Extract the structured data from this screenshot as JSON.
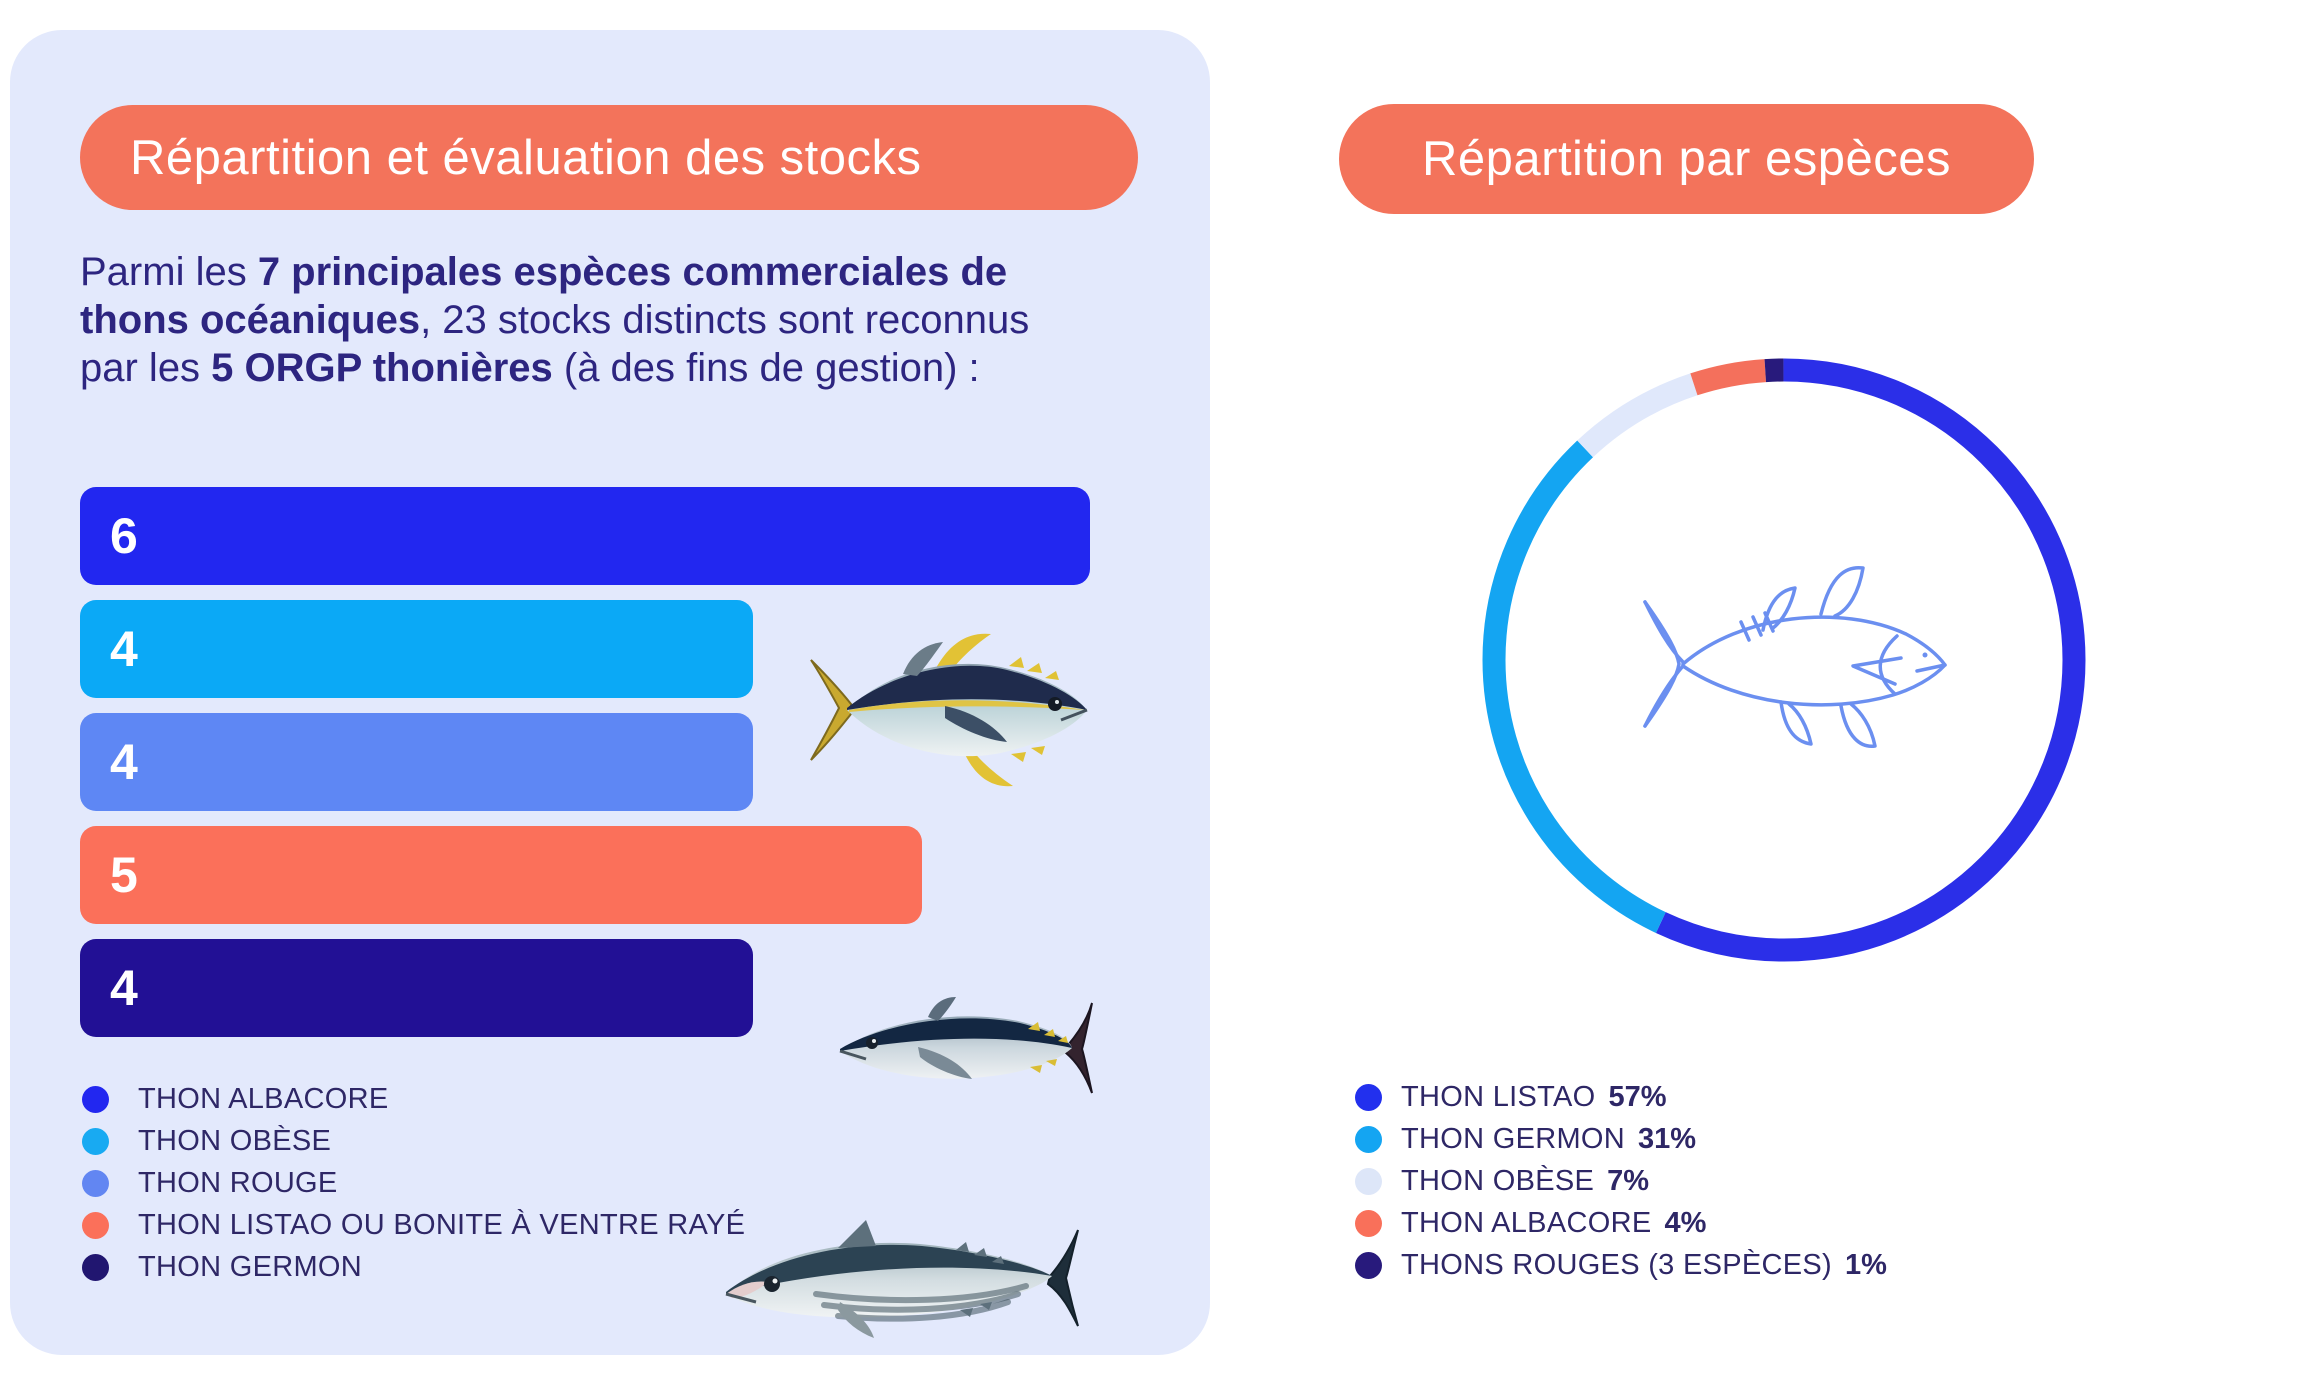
{
  "left_panel": {
    "title": "Répartition et évaluation des stocks",
    "intro": {
      "t1": "Parmi les ",
      "b1": "7 principales espèces commerciales de thons océaniques",
      "t2": ", 23 stocks distincts sont reconnus par les ",
      "b2": "5 ORGP thonières",
      "t3": " (à des fins de gestion) :"
    },
    "legend": [
      {
        "label": "THON ALBACORE",
        "color": "#2227f0"
      },
      {
        "label": "THON OBÈSE",
        "color": "#18aaf2"
      },
      {
        "label": "THON ROUGE",
        "color": "#6286f2"
      },
      {
        "label": "THON LISTAO OU BONITE À VENTRE RAYÉ",
        "color": "#fb705a"
      },
      {
        "label": "THON GERMON",
        "color": "#211670"
      }
    ]
  },
  "right_panel": {
    "title": "Répartition par espèces",
    "legend": [
      {
        "label": "THON LISTAO",
        "pct": "57%",
        "color": "#2230ee"
      },
      {
        "label": "THON GERMON",
        "pct": "31%",
        "color": "#14a5f2"
      },
      {
        "label": "THON OBÈSE",
        "pct": "7%",
        "color": "#dde6f8"
      },
      {
        "label": "THON ALBACORE",
        "pct": "4%",
        "color": "#f9705a"
      },
      {
        "label": "THONS ROUGES (3 ESPÈCES)",
        "pct": "1%",
        "color": "#281a7c"
      }
    ]
  },
  "chart_data": [
    {
      "type": "bar",
      "orientation": "horizontal",
      "title": "Répartition et évaluation des stocks",
      "categories": [
        "THON ALBACORE",
        "THON OBÈSE",
        "THON ROUGE",
        "THON LISTAO OU BONITE À VENTRE RAYÉ",
        "THON GERMON"
      ],
      "values": [
        6,
        4,
        4,
        5,
        4
      ],
      "value_labels": [
        "6",
        "4",
        "4",
        "5",
        "4"
      ],
      "colors": [
        "#2227f0",
        "#0ba9f6",
        "#5e87f4",
        "#fb705a",
        "#221095"
      ],
      "xlim": [
        0,
        6
      ],
      "grid": false,
      "value_label_position": "inside-left",
      "legend_position": "bottom-left"
    },
    {
      "type": "pie",
      "subtype": "donut",
      "title": "Répartition par espèces",
      "labels": [
        "THON LISTAO",
        "THON GERMON",
        "THON OBÈSE",
        "THON ALBACORE",
        "THONS ROUGES (3 ESPÈCES)"
      ],
      "values": [
        57,
        31,
        7,
        4,
        1
      ],
      "unit": "%",
      "colors": [
        "#2b2fe8",
        "#14a5f2",
        "#e0e8fb",
        "#f4705c",
        "#281a7c"
      ],
      "start_angle_deg": 0,
      "direction": "clockwise",
      "center_icon": "tuna-outline",
      "legend_position": "bottom-left"
    }
  ],
  "icons": {
    "center_fish": "tuna-outline-icon",
    "photos": [
      "yellowfin-tuna-photo",
      "bluefin-tuna-photo",
      "skipjack-tuna-photo"
    ]
  }
}
